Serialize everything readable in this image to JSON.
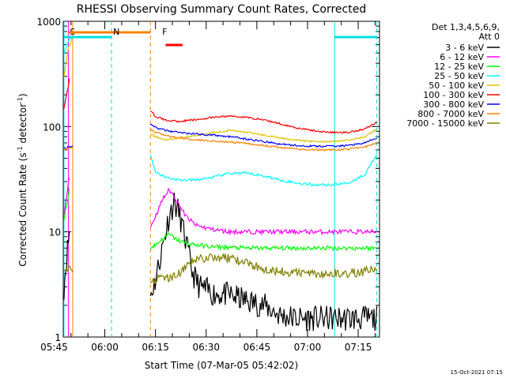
{
  "chart_data": {
    "type": "line",
    "title": "RHESSI Observing Summary Count Rates, Corrected",
    "xlabel": "Start Time (07-Mar-05 05:42:02)",
    "ylabel": "Corrected Count Rate (s⁻¹ detector⁻¹)",
    "ylabel_main": "Corrected Count Rate (s",
    "ylabel_sup1": "-1",
    "ylabel_mid": " detector",
    "ylabel_sup2": "-1",
    "ylabel_end": ")",
    "y_scale": "log",
    "ylim": [
      1,
      1000
    ],
    "xlim_minutes": [
      5.7,
      99.3
    ],
    "x_ticks": [
      {
        "label": "05:45",
        "min": 3
      },
      {
        "label": "06:00",
        "min": 18
      },
      {
        "label": "06:15",
        "min": 33
      },
      {
        "label": "06:30",
        "min": 48
      },
      {
        "label": "06:45",
        "min": 63
      },
      {
        "label": "07:00",
        "min": 78
      },
      {
        "label": "07:15",
        "min": 93
      }
    ],
    "y_ticks": [
      {
        "label": "1",
        "value": 1
      },
      {
        "label": "10",
        "value": 10
      },
      {
        "label": "100",
        "value": 100
      },
      {
        "label": "1000",
        "value": 1000
      }
    ],
    "legend_header": [
      "Det 1,3,4,5,6,9,",
      "Att 0"
    ],
    "legend_position": "right",
    "footer_date": "15-Oct-2021 07:15",
    "flags": [
      {
        "label": "S",
        "color": "#ff8000",
        "x": 7.2,
        "x_end": 31.5
      },
      {
        "label": "N",
        "color": "#00e0e0",
        "x": 20.0
      },
      {
        "label": "F",
        "color": "#ff0000",
        "x": 34.5,
        "x_end": 41.0
      }
    ],
    "time_markers": [
      {
        "color": "#00e0e0",
        "style": "solid",
        "x": 5.9
      },
      {
        "color": "#ff00ff",
        "style": "solid",
        "x": 7.2
      },
      {
        "color": "#ff8000",
        "style": "solid",
        "x": 8.5
      },
      {
        "color": "#00e0e0",
        "style": "dashed",
        "x": 20.0
      },
      {
        "color": "#ff8000",
        "style": "dashed",
        "x": 31.5
      },
      {
        "color": "#00e0e0",
        "style": "solid",
        "x": 86.0
      },
      {
        "color": "#00e0e0",
        "style": "dashed",
        "x": 98.5
      }
    ],
    "series": [
      {
        "name": "3 - 6 keV",
        "color": "#000000",
        "noise": 0.28,
        "segments": [
          {
            "x": [
              5.9,
              6.5,
              7.2,
              7.5
            ],
            "y": [
              3.0,
              5.0,
              8.0,
              10.0
            ]
          },
          {
            "x": [
              31.5,
              33,
              35,
              37,
              38.5,
              40,
              42,
              44,
              46,
              50,
              55,
              60,
              65,
              70,
              75,
              80,
              85,
              90,
              95,
              98.5
            ],
            "y": [
              2.5,
              3.5,
              7.0,
              14.0,
              19.0,
              15.0,
              8.0,
              4.0,
              3.0,
              2.6,
              2.5,
              2.2,
              2.0,
              1.6,
              1.5,
              1.5,
              1.5,
              1.5,
              1.5,
              1.5
            ]
          }
        ]
      },
      {
        "name": "6 - 12 keV",
        "color": "#ff00ff",
        "noise": 0.05,
        "segments": [
          {
            "x": [
              5.9,
              6.5,
              7.2,
              7.5
            ],
            "y": [
              13,
              20,
              30,
              34
            ]
          },
          {
            "x": [
              31.5,
              33,
              35,
              37,
              38.5,
              40,
              42,
              45,
              50,
              55,
              60,
              70,
              80,
              90,
              98.5
            ],
            "y": [
              11,
              14,
              20,
              25,
              22,
              18,
              14,
              11.5,
              10.5,
              10,
              10,
              10,
              10,
              10,
              10
            ]
          }
        ]
      },
      {
        "name": "12 - 25 keV",
        "color": "#00ff00",
        "noise": 0.05,
        "segments": [
          {
            "x": [
              5.9,
              6.5,
              7.2,
              7.5
            ],
            "y": [
              13,
              17,
              22,
              25
            ]
          },
          {
            "x": [
              31.5,
              33,
              35,
              37,
              39,
              42,
              45,
              50,
              60,
              70,
              80,
              90,
              98.5
            ],
            "y": [
              7.0,
              7.5,
              8.5,
              9.5,
              8.5,
              7.8,
              7.5,
              7.2,
              7.0,
              7.0,
              7.0,
              7.0,
              7.0
            ]
          }
        ]
      },
      {
        "name": "25 - 50 keV",
        "color": "#00ffff",
        "noise": 0.03,
        "segments": [
          {
            "x": [
              5.9,
              7.2,
              8.5
            ],
            "y": [
              500,
              650,
              700
            ]
          },
          {
            "x": [
              31.5,
              33,
              36,
              40,
              45,
              50,
              55,
              60,
              65,
              70,
              75,
              80,
              85,
              90,
              95,
              98.5
            ],
            "y": [
              55,
              37,
              33,
              31,
              31,
              33,
              36,
              36,
              34,
              31,
              29,
              28,
              28,
              29,
              35,
              55
            ]
          }
        ]
      },
      {
        "name": "50 - 100 keV",
        "color": "#e0c000",
        "noise": 0.02,
        "segments": [
          {
            "x": [
              5.9,
              7.2,
              8.5
            ],
            "y": [
              300,
              550,
              700
            ]
          },
          {
            "x": [
              31.5,
              33,
              36,
              40,
              45,
              50,
              55,
              60,
              65,
              70,
              75,
              80,
              85,
              90,
              95,
              98.5
            ],
            "y": [
              85,
              80,
              75,
              78,
              82,
              88,
              92,
              88,
              83,
              78,
              74,
              72,
              72,
              74,
              80,
              95
            ]
          }
        ]
      },
      {
        "name": "100 - 300 keV",
        "color": "#ff0000",
        "noise": 0.02,
        "segments": [
          {
            "x": [
              5.9,
              6.5,
              7.2,
              7.5
            ],
            "y": [
              150,
              190,
              240,
              280
            ]
          },
          {
            "x": [
              31.5,
              33,
              36,
              40,
              45,
              50,
              55,
              60,
              65,
              70,
              75,
              80,
              85,
              90,
              95,
              98.5
            ],
            "y": [
              140,
              125,
              115,
              112,
              116,
              122,
              126,
              122,
              116,
              106,
              97,
              91,
              88,
              88,
              95,
              110
            ]
          }
        ]
      },
      {
        "name": "300 - 800 keV",
        "color": "#0000ff",
        "noise": 0.02,
        "segments": [
          {
            "x": [
              5.9,
              7.2,
              8.5
            ],
            "y": [
              62,
              64,
              65
            ]
          },
          {
            "x": [
              31.5,
              33,
              36,
              40,
              45,
              50,
              55,
              60,
              65,
              70,
              75,
              80,
              85,
              90,
              95,
              98.5
            ],
            "y": [
              105,
              98,
              92,
              88,
              85,
              83,
              80,
              76,
              72,
              68,
              66,
              65,
              65,
              66,
              70,
              78
            ]
          }
        ]
      },
      {
        "name": "800 - 7000 keV",
        "color": "#ff8000",
        "noise": 0.02,
        "segments": [
          {
            "x": [
              5.9,
              7.2,
              8.5
            ],
            "y": [
              60,
              62,
              62
            ]
          },
          {
            "x": [
              31.5,
              33,
              36,
              40,
              45,
              50,
              55,
              60,
              65,
              70,
              75,
              80,
              85,
              90,
              95,
              98.5
            ],
            "y": [
              95,
              88,
              82,
              78,
              75,
              73,
              71,
              69,
              66,
              63,
              61,
              60,
              60,
              61,
              64,
              70
            ]
          }
        ]
      },
      {
        "name": "7000 - 15000 keV",
        "color": "#808000",
        "noise": 0.1,
        "segments": [
          {
            "x": [
              5.9,
              7.2,
              8.5
            ],
            "y": [
              4.5,
              4.5,
              4.5
            ]
          },
          {
            "x": [
              31.5,
              34,
              38,
              42,
              45,
              50,
              55,
              60,
              65,
              70,
              75,
              80,
              85,
              90,
              95,
              98.5
            ],
            "y": [
              3.4,
              3.6,
              3.7,
              4.5,
              5.5,
              5.8,
              5.6,
              5.0,
              4.5,
              4.2,
              4.1,
              4.0,
              4.0,
              4.0,
              4.2,
              4.6
            ]
          }
        ]
      }
    ]
  }
}
